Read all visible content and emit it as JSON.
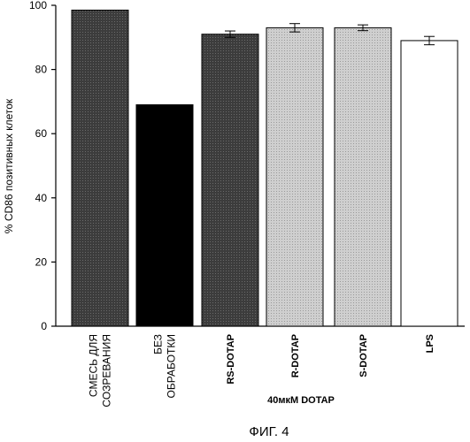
{
  "chart_data": {
    "type": "bar",
    "ylabel": "% CD86 позитивных клеток",
    "ylim": [
      0,
      100
    ],
    "yticks": [
      0,
      20,
      40,
      60,
      80,
      100
    ],
    "categories": [
      [
        "СМЕСЬ ДЛЯ",
        "СОЗРЕВАНИЯ"
      ],
      [
        "БЕЗ",
        "ОБРАБОТКИ"
      ],
      [
        "RS-DOTAP"
      ],
      [
        "R-DOTAP"
      ],
      [
        "S-DOTAP"
      ],
      [
        "LPS"
      ]
    ],
    "values": [
      98.5,
      69,
      91,
      93,
      93,
      89
    ],
    "errors": [
      0,
      0,
      1.0,
      1.3,
      0.9,
      1.3
    ],
    "colors": [
      "#3a3a3a",
      "#000000",
      "#444444",
      "#c4c4c4",
      "#c4c4c4",
      "#ffffff"
    ],
    "group_label": "40мкМ DOTAP",
    "group_members": [
      2,
      3,
      4
    ],
    "grid": false
  },
  "caption": "ФИГ. 4"
}
